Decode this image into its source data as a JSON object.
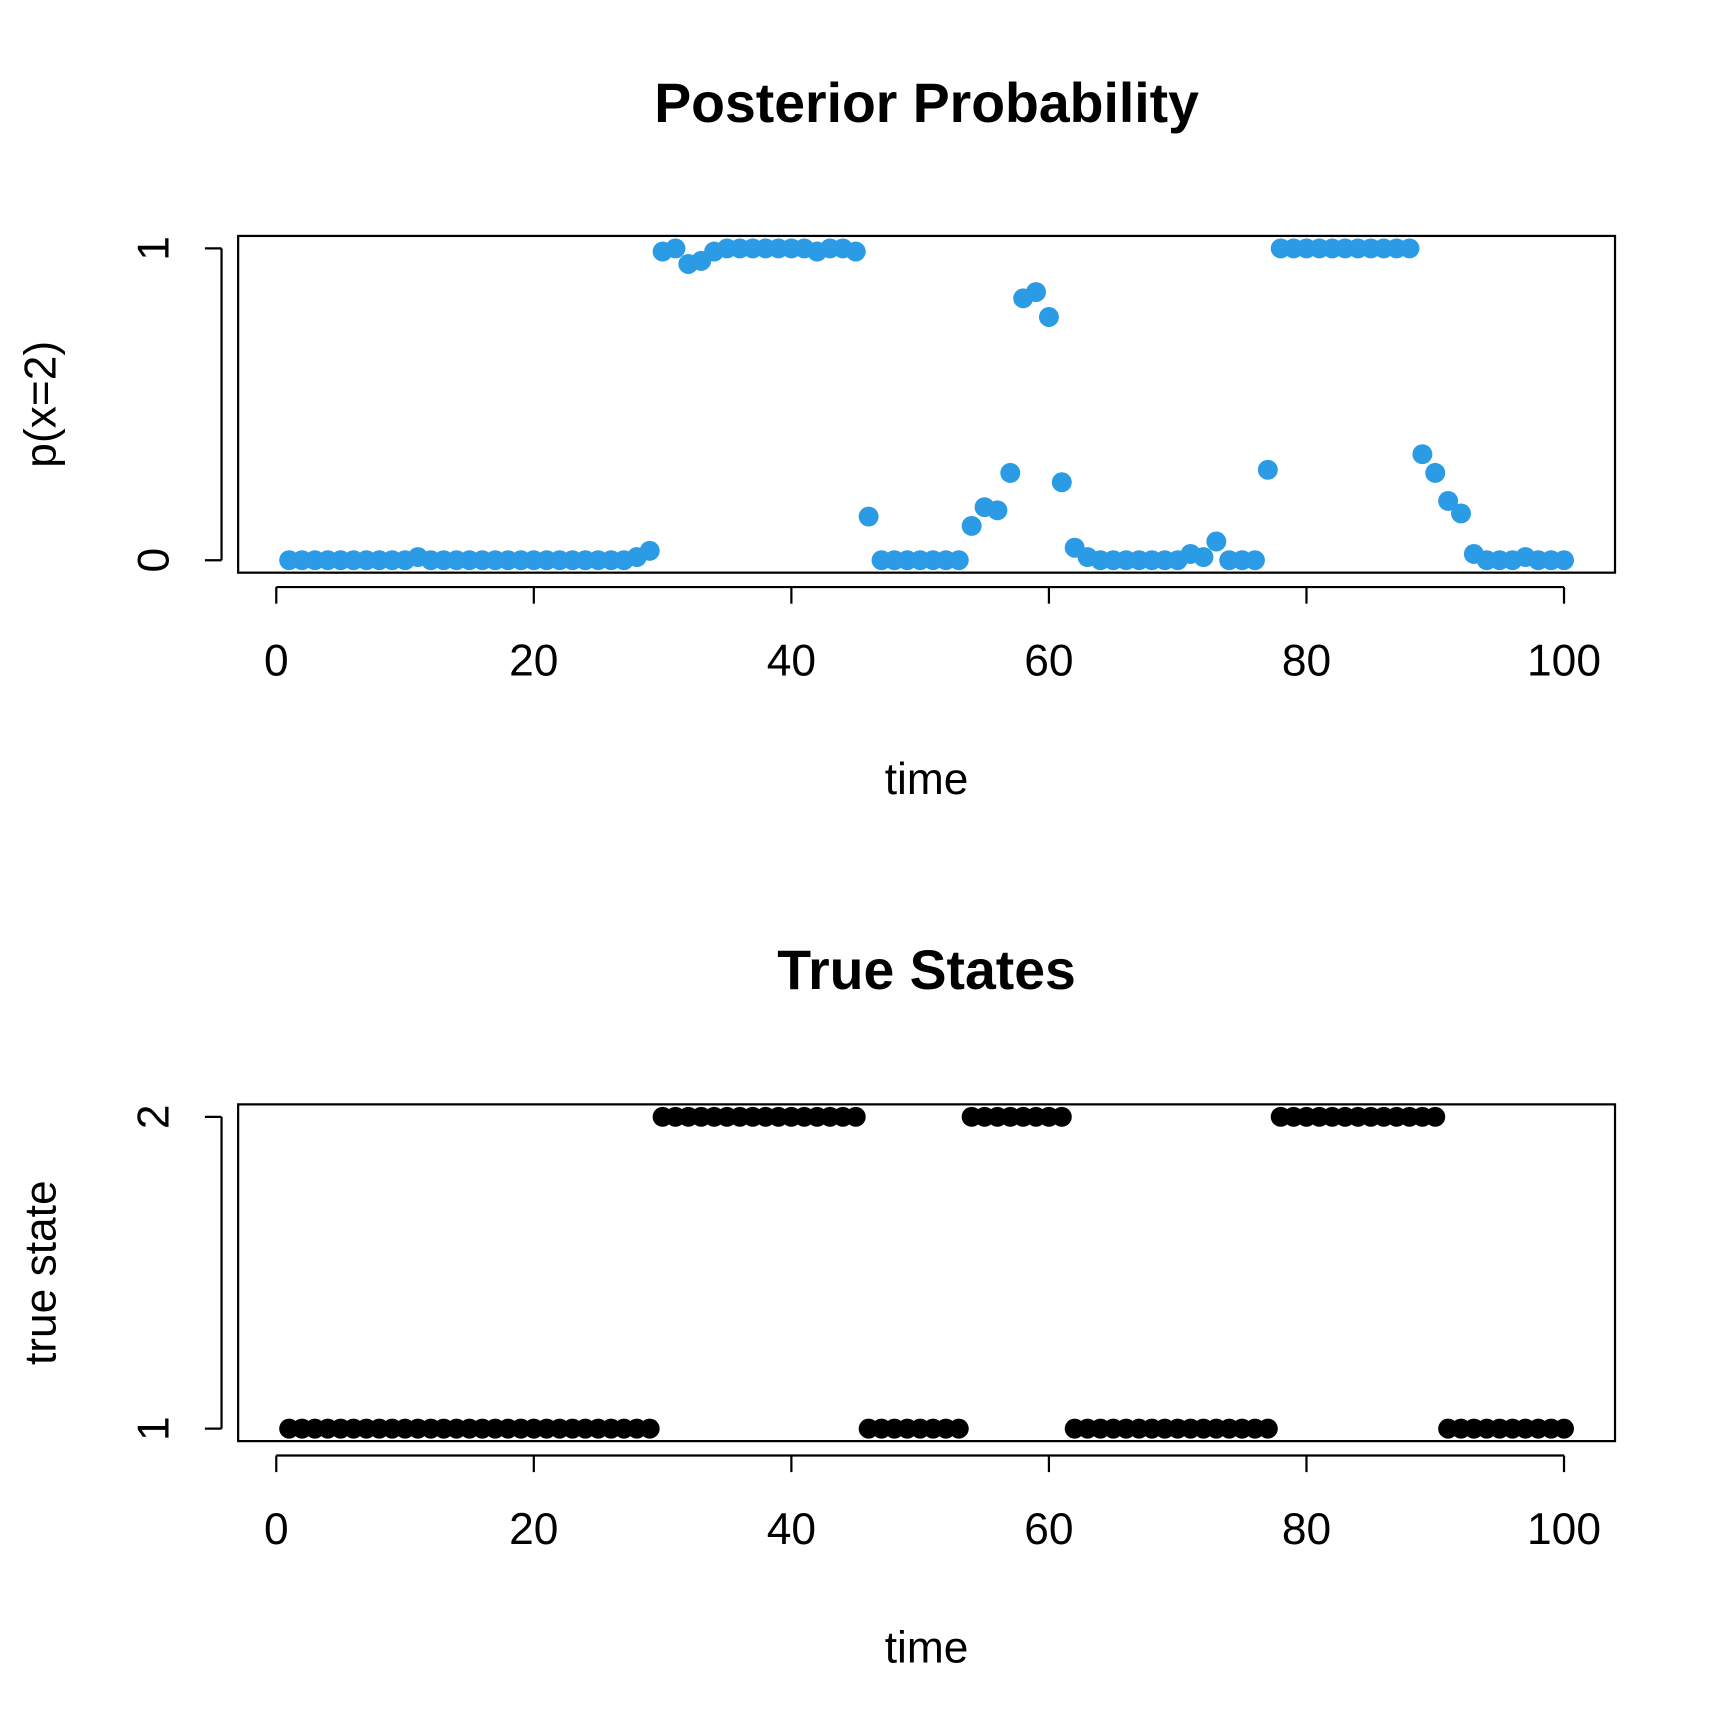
{
  "chart_data": [
    {
      "type": "scatter",
      "title": "Posterior Probability",
      "xlabel": "time",
      "ylabel": "p(x=2)",
      "color": "#2b9be5",
      "x": [
        1,
        2,
        3,
        4,
        5,
        6,
        7,
        8,
        9,
        10,
        11,
        12,
        13,
        14,
        15,
        16,
        17,
        18,
        19,
        20,
        21,
        22,
        23,
        24,
        25,
        26,
        27,
        28,
        29,
        30,
        31,
        32,
        33,
        34,
        35,
        36,
        37,
        38,
        39,
        40,
        41,
        42,
        43,
        44,
        45,
        46,
        47,
        48,
        49,
        50,
        51,
        52,
        53,
        54,
        55,
        56,
        57,
        58,
        59,
        60,
        61,
        62,
        63,
        64,
        65,
        66,
        67,
        68,
        69,
        70,
        71,
        72,
        73,
        74,
        75,
        76,
        77,
        78,
        79,
        80,
        81,
        82,
        83,
        84,
        85,
        86,
        87,
        88,
        89,
        90,
        91,
        92,
        93,
        94,
        95,
        96,
        97,
        98,
        99,
        100
      ],
      "values": [
        0,
        0,
        0,
        0,
        0,
        0,
        0,
        0,
        0,
        0,
        0.01,
        0,
        0,
        0,
        0,
        0,
        0,
        0,
        0,
        0,
        0,
        0,
        0,
        0,
        0,
        0,
        0,
        0.01,
        0.03,
        0.99,
        1,
        0.95,
        0.96,
        0.99,
        1,
        1,
        1,
        1,
        1,
        1,
        1,
        0.99,
        1,
        1,
        0.99,
        0.14,
        0,
        0,
        0,
        0,
        0,
        0,
        0,
        0.11,
        0.17,
        0.16,
        0.28,
        0.84,
        0.86,
        0.78,
        0.25,
        0.04,
        0.01,
        0,
        0,
        0,
        0,
        0,
        0,
        0,
        0.02,
        0.01,
        0.06,
        0,
        0,
        0,
        0.29,
        1,
        1,
        1,
        1,
        1,
        1,
        1,
        1,
        1,
        1,
        1,
        0.34,
        0.28,
        0.19,
        0.15,
        0.02,
        0,
        0,
        0,
        0.01,
        0,
        0,
        0
      ],
      "xlim": [
        -2.96,
        103.96
      ],
      "ylim": [
        -0.04,
        1.04
      ],
      "xticks": [
        0,
        20,
        40,
        60,
        80,
        100
      ],
      "yticks": [
        0,
        1
      ]
    },
    {
      "type": "scatter",
      "title": "True States",
      "xlabel": "time",
      "ylabel": "true state",
      "color": "#000000",
      "x": [
        1,
        2,
        3,
        4,
        5,
        6,
        7,
        8,
        9,
        10,
        11,
        12,
        13,
        14,
        15,
        16,
        17,
        18,
        19,
        20,
        21,
        22,
        23,
        24,
        25,
        26,
        27,
        28,
        29,
        30,
        31,
        32,
        33,
        34,
        35,
        36,
        37,
        38,
        39,
        40,
        41,
        42,
        43,
        44,
        45,
        46,
        47,
        48,
        49,
        50,
        51,
        52,
        53,
        54,
        55,
        56,
        57,
        58,
        59,
        60,
        61,
        62,
        63,
        64,
        65,
        66,
        67,
        68,
        69,
        70,
        71,
        72,
        73,
        74,
        75,
        76,
        77,
        78,
        79,
        80,
        81,
        82,
        83,
        84,
        85,
        86,
        87,
        88,
        89,
        90,
        91,
        92,
        93,
        94,
        95,
        96,
        97,
        98,
        99,
        100
      ],
      "values": [
        1,
        1,
        1,
        1,
        1,
        1,
        1,
        1,
        1,
        1,
        1,
        1,
        1,
        1,
        1,
        1,
        1,
        1,
        1,
        1,
        1,
        1,
        1,
        1,
        1,
        1,
        1,
        1,
        1,
        2,
        2,
        2,
        2,
        2,
        2,
        2,
        2,
        2,
        2,
        2,
        2,
        2,
        2,
        2,
        2,
        1,
        1,
        1,
        1,
        1,
        1,
        1,
        1,
        2,
        2,
        2,
        2,
        2,
        2,
        2,
        2,
        1,
        1,
        1,
        1,
        1,
        1,
        1,
        1,
        1,
        1,
        1,
        1,
        1,
        1,
        1,
        1,
        2,
        2,
        2,
        2,
        2,
        2,
        2,
        2,
        2,
        2,
        2,
        2,
        2,
        1,
        1,
        1,
        1,
        1,
        1,
        1,
        1,
        1,
        1
      ],
      "xlim": [
        -2.96,
        103.96
      ],
      "ylim": [
        0.96,
        2.04
      ],
      "xticks": [
        0,
        20,
        40,
        60,
        80,
        100
      ],
      "yticks": [
        1,
        2
      ]
    }
  ]
}
